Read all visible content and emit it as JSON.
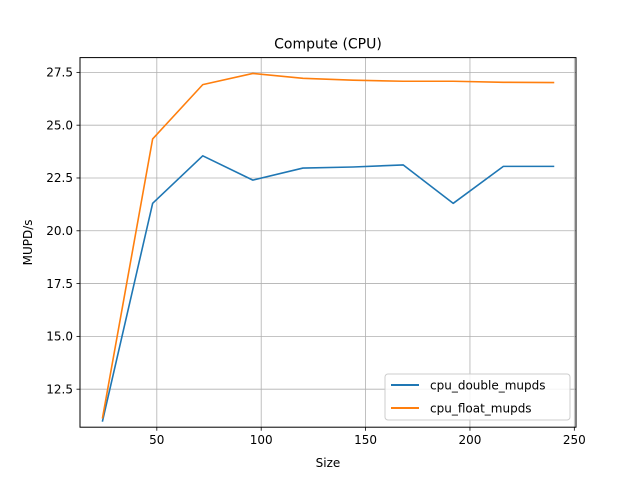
{
  "chart_data": {
    "type": "line",
    "title": "Compute (CPU)",
    "xlabel": "Size",
    "ylabel": "MUPD/s",
    "xlim": [
      13.2,
      250.8
    ],
    "ylim": [
      10.7,
      28.2
    ],
    "xticks": [
      50,
      100,
      150,
      200,
      250
    ],
    "xtick_labels": [
      "50",
      "100",
      "150",
      "200",
      "250"
    ],
    "yticks": [
      12.5,
      15.0,
      17.5,
      20.0,
      22.5,
      25.0,
      27.5
    ],
    "ytick_labels": [
      "12.5",
      "15.0",
      "17.5",
      "20.0",
      "22.5",
      "25.0",
      "27.5"
    ],
    "grid": true,
    "legend_position": "lower-right",
    "x": [
      24,
      48,
      72,
      96,
      120,
      144,
      168,
      192,
      216,
      240
    ],
    "series": [
      {
        "name": "cpu_double_mupds",
        "color": "#1f77b4",
        "values": [
          11.0,
          21.3,
          23.55,
          22.4,
          22.97,
          23.02,
          23.12,
          21.3,
          23.05,
          23.05
        ]
      },
      {
        "name": "cpu_float_mupds",
        "color": "#ff7f0e",
        "values": [
          11.15,
          24.35,
          26.92,
          27.45,
          27.22,
          27.13,
          27.08,
          27.08,
          27.03,
          27.02
        ]
      }
    ]
  }
}
